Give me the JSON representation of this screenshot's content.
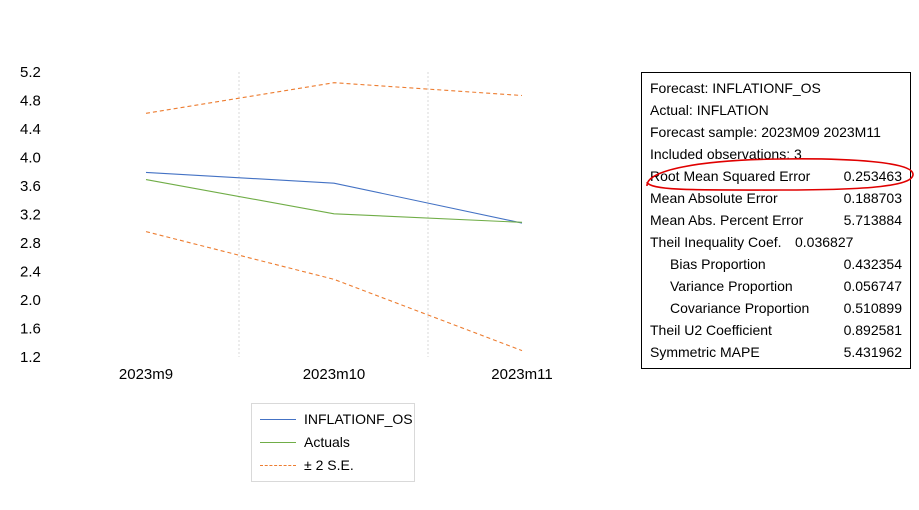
{
  "chart_data": {
    "type": "line",
    "categories": [
      "2023m9",
      "2023m10",
      "2023m11"
    ],
    "series": [
      {
        "name": "INFLATIONF_OS",
        "values": [
          3.79,
          3.64,
          3.08
        ],
        "color": "#4472c4",
        "style": "solid"
      },
      {
        "name": "Actuals",
        "values": [
          3.69,
          3.21,
          3.09
        ],
        "color": "#70ad47",
        "style": "solid"
      },
      {
        "name": "± 2 S.E.",
        "values": [
          4.62,
          5.05,
          4.87
        ],
        "color": "#ed7d31",
        "style": "dashed"
      },
      {
        "name": "± 2 S.E.",
        "values": [
          2.96,
          2.29,
          1.29
        ],
        "color": "#ed7d31",
        "style": "dashed"
      }
    ],
    "yticks": [
      "5.2",
      "4.8",
      "4.4",
      "4.0",
      "3.6",
      "3.2",
      "2.8",
      "2.4",
      "2.0",
      "1.6",
      "1.2"
    ],
    "ylim": [
      1.2,
      5.2
    ],
    "grid": "vertical dotted lines between categories",
    "legend_position": "bottom",
    "title": "",
    "xlabel": "",
    "ylabel": ""
  },
  "legend": {
    "items": [
      {
        "label": "INFLATIONF_OS",
        "color": "#4472c4",
        "style": "solid"
      },
      {
        "label": "Actuals",
        "color": "#70ad47",
        "style": "solid"
      },
      {
        "label": "± 2 S.E.",
        "color": "#ed7d31",
        "style": "dashed"
      }
    ]
  },
  "stats": {
    "forecast": "Forecast: INFLATIONF_OS",
    "actual": "Actual: INFLATION",
    "sample": "Forecast sample: 2023M09 2023M11",
    "included": "Included observations: 3",
    "rows": [
      {
        "label": "Root Mean Squared Error",
        "value": "0.253463"
      },
      {
        "label": "Mean Absolute Error",
        "value": "0.188703"
      },
      {
        "label": "Mean Abs. Percent Error",
        "value": "5.713884"
      },
      {
        "label": "Theil Inequality Coef.",
        "value": "0.036827"
      },
      {
        "label": "Bias Proportion",
        "value": "0.432354"
      },
      {
        "label": "Variance Proportion",
        "value": "0.056747"
      },
      {
        "label": "Covariance Proportion",
        "value": "0.510899"
      },
      {
        "label": "Theil U2 Coefficient",
        "value": "0.892581"
      },
      {
        "label": "Symmetric MAPE",
        "value": "5.431962"
      }
    ],
    "highlight_color": "#e00000"
  }
}
